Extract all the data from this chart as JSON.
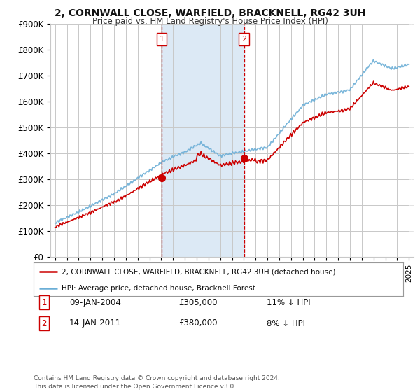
{
  "title": "2, CORNWALL CLOSE, WARFIELD, BRACKNELL, RG42 3UH",
  "subtitle": "Price paid vs. HM Land Registry's House Price Index (HPI)",
  "ylim": [
    0,
    900000
  ],
  "yticks": [
    0,
    100000,
    200000,
    300000,
    400000,
    500000,
    600000,
    700000,
    800000,
    900000
  ],
  "ytick_labels": [
    "£0",
    "£100K",
    "£200K",
    "£300K",
    "£400K",
    "£500K",
    "£600K",
    "£700K",
    "£800K",
    "£900K"
  ],
  "sale1_year": 2004.03,
  "sale1_price": 305000,
  "sale1_date": "09-JAN-2004",
  "sale1_pct": "11%",
  "sale2_year": 2011.03,
  "sale2_price": 380000,
  "sale2_date": "14-JAN-2011",
  "sale2_pct": "8%",
  "hpi_color": "#6baed6",
  "price_color": "#cc0000",
  "vline_color": "#cc0000",
  "vshade_color": "#dce9f5",
  "background_color": "#ffffff",
  "grid_color": "#c8c8c8",
  "legend_label_price": "2, CORNWALL CLOSE, WARFIELD, BRACKNELL, RG42 3UH (detached house)",
  "legend_label_hpi": "HPI: Average price, detached house, Bracknell Forest",
  "footnote": "Contains HM Land Registry data © Crown copyright and database right 2024.\nThis data is licensed under the Open Government Licence v3.0.",
  "xlim_left": 1994.6,
  "xlim_right": 2025.4
}
